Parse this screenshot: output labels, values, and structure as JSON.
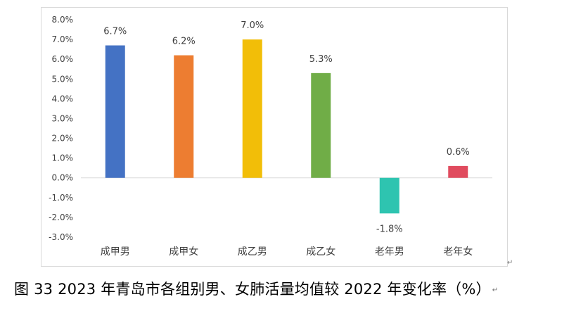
{
  "caption": "图 33 2023 年青岛市各组别男、女肺活量均值较 2022 年变化率（%）",
  "paragraph_mark": "↵",
  "chart_data": {
    "type": "bar",
    "title": "",
    "xlabel": "",
    "ylabel": "",
    "categories": [
      "成甲男",
      "成甲女",
      "成乙男",
      "成乙女",
      "老年男",
      "老年女"
    ],
    "values": [
      6.7,
      6.2,
      7.0,
      5.3,
      -1.8,
      0.6
    ],
    "data_labels": [
      "6.7%",
      "6.2%",
      "7.0%",
      "5.3%",
      "-1.8%",
      "0.6%"
    ],
    "colors": [
      "#4472C4",
      "#ED7D31",
      "#F2BE08",
      "#70AD47",
      "#2EC4B0",
      "#E04B5E"
    ],
    "ylim": [
      -3.0,
      8.0
    ],
    "yticks": [
      8.0,
      7.0,
      6.0,
      5.0,
      4.0,
      3.0,
      2.0,
      1.0,
      0.0,
      -1.0,
      -2.0,
      -3.0
    ],
    "ytick_labels": [
      "8.0%",
      "7.0%",
      "6.0%",
      "5.0%",
      "4.0%",
      "3.0%",
      "2.0%",
      "1.0%",
      "0.0%",
      "-1.0%",
      "-2.0%",
      "-3.0%"
    ],
    "grid": false,
    "legend": "none"
  }
}
